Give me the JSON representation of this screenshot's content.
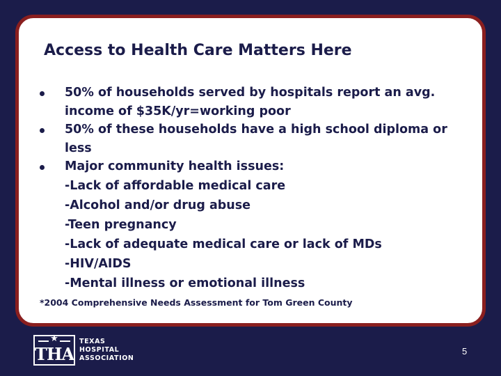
{
  "slide": {
    "title": "Access to Health Care Matters Here",
    "bullets": [
      {
        "text": "50% of households served by hospitals report an avg. income of $35K/yr=working poor"
      },
      {
        "text": "50% of these households have a high school diploma or less"
      },
      {
        "text": "Major community health issues:"
      }
    ],
    "sub_items": [
      "-Lack of affordable medical care",
      "-Alcohol and/or drug abuse",
      "-Teen pregnancy",
      "-Lack of adequate medical care or lack of MDs",
      "-HIV/AIDS",
      "-Mental illness or emotional illness"
    ],
    "footnote": "*2004 Comprehensive Needs Assessment for Tom Green County",
    "page_number": "5"
  },
  "logo": {
    "mark_letters": "THA",
    "star": "★",
    "line1": "TEXAS",
    "line2": "HOSPITAL",
    "line3": "ASSOCIATION"
  },
  "colors": {
    "background": "#1b1c4a",
    "border": "#8a1f1f",
    "text": "#1b1c4a",
    "card": "#ffffff"
  }
}
